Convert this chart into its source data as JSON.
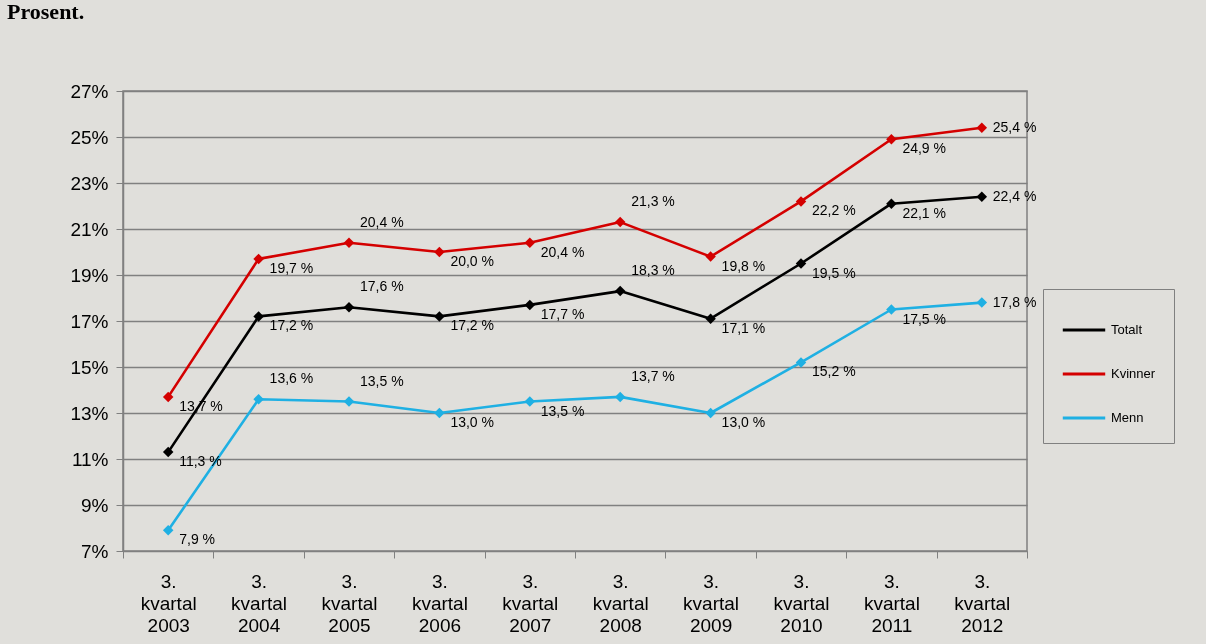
{
  "chart_data": {
    "type": "line",
    "title": "Prosent.",
    "categories": [
      "3. kvartal 2003",
      "3. kvartal 2004",
      "3. kvartal 2005",
      "3. kvartal 2006",
      "3. kvartal 2007",
      "3. kvartal 2008",
      "3. kvartal 2009",
      "3. kvartal 2010",
      "3. kvartal 2011",
      "3. kvartal 2012"
    ],
    "series": [
      {
        "name": "Totalt",
        "color": "#000000",
        "values": [
          11.3,
          17.2,
          17.6,
          17.2,
          17.7,
          18.3,
          17.1,
          19.5,
          22.1,
          22.4
        ],
        "value_labels": [
          "11,3 %",
          "17,2 %",
          "17,6 %",
          "17,2 %",
          "17,7 %",
          "18,3 %",
          "17,1 %",
          "19,5 %",
          "22,1 %",
          "22,4 %"
        ]
      },
      {
        "name": "Kvinner",
        "color": "#d40000",
        "values": [
          13.7,
          19.7,
          20.4,
          20.0,
          20.4,
          21.3,
          19.8,
          22.2,
          24.9,
          25.4
        ],
        "value_labels": [
          "13,7 %",
          "19,7 %",
          "20,4 %",
          "20,0 %",
          "20,4 %",
          "21,3 %",
          "19,8 %",
          "22,2 %",
          "24,9 %",
          "25,4 %"
        ]
      },
      {
        "name": "Menn",
        "color": "#1fb0e3",
        "values": [
          7.9,
          13.6,
          13.5,
          13.0,
          13.5,
          13.7,
          13.0,
          15.2,
          17.5,
          17.8
        ],
        "value_labels": [
          "7,9 %",
          "13,6 %",
          "13,5 %",
          "13,0 %",
          "13,5 %",
          "13,7 %",
          "13,0 %",
          "15,2 %",
          "17,5 %",
          "17,8 %"
        ]
      }
    ],
    "ylim": [
      7,
      27
    ],
    "yticks": [
      {
        "value": 7,
        "label": "7%"
      },
      {
        "value": 9,
        "label": "9%"
      },
      {
        "value": 11,
        "label": "11%"
      },
      {
        "value": 13,
        "label": "13%"
      },
      {
        "value": 15,
        "label": "15%"
      },
      {
        "value": 17,
        "label": "17%"
      },
      {
        "value": 19,
        "label": "19%"
      },
      {
        "value": 21,
        "label": "21%"
      },
      {
        "value": 23,
        "label": "23%"
      },
      {
        "value": 25,
        "label": "25%"
      },
      {
        "value": 27,
        "label": "27%"
      }
    ],
    "grid": "y",
    "legend": "right",
    "marker": "diamond",
    "line_style": "solid"
  }
}
